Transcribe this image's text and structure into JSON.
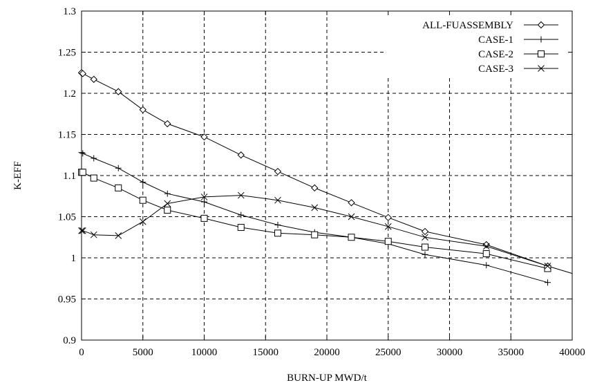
{
  "chart_data": {
    "type": "line",
    "title": "",
    "xlabel": "BURN-UP MWD/t",
    "ylabel": "K-EFF",
    "xlim": [
      0,
      40000
    ],
    "ylim": [
      0.9,
      1.3
    ],
    "x_ticks": [
      0,
      5000,
      10000,
      15000,
      20000,
      25000,
      30000,
      35000,
      40000
    ],
    "x_tick_labels": [
      "0",
      "5000",
      "10000",
      "15000",
      "20000",
      "25000",
      "30000",
      "35000",
      "40000"
    ],
    "y_ticks": [
      0.9,
      0.95,
      1.0,
      1.05,
      1.1,
      1.15,
      1.2,
      1.25,
      1.3
    ],
    "y_tick_labels": [
      "0.9",
      "0.95",
      "1",
      "1.05",
      "1.1",
      "1.15",
      "1.2",
      "1.25",
      "1.3"
    ],
    "grid": true,
    "legend_position": "top-right",
    "series": [
      {
        "name": "ALL-FUASSEMBLY",
        "marker": "diamond",
        "x": [
          0,
          100,
          1000,
          3000,
          5000,
          7000,
          10000,
          13000,
          16000,
          19000,
          22000,
          25000,
          28000,
          33000,
          38000,
          40000
        ],
        "y": [
          1.225,
          1.224,
          1.217,
          1.202,
          1.18,
          1.163,
          1.147,
          1.125,
          1.105,
          1.085,
          1.067,
          1.049,
          1.032,
          1.016,
          0.99,
          0.981
        ]
      },
      {
        "name": "CASE-1",
        "marker": "plus",
        "x": [
          0,
          100,
          1000,
          3000,
          5000,
          7000,
          10000,
          13000,
          16000,
          19000,
          22000,
          25000,
          28000,
          33000,
          38000
        ],
        "y": [
          1.128,
          1.127,
          1.121,
          1.109,
          1.092,
          1.078,
          1.068,
          1.052,
          1.04,
          1.031,
          1.025,
          1.017,
          1.004,
          0.991,
          0.97
        ]
      },
      {
        "name": "CASE-2",
        "marker": "square",
        "x": [
          0,
          100,
          1000,
          3000,
          5000,
          7000,
          10000,
          13000,
          16000,
          19000,
          22000,
          25000,
          28000,
          33000,
          38000
        ],
        "y": [
          1.104,
          1.104,
          1.097,
          1.085,
          1.07,
          1.058,
          1.048,
          1.037,
          1.03,
          1.028,
          1.025,
          1.02,
          1.013,
          1.005,
          0.987
        ]
      },
      {
        "name": "CASE-3",
        "marker": "x",
        "x": [
          0,
          100,
          1000,
          3000,
          5000,
          7000,
          10000,
          13000,
          16000,
          19000,
          22000,
          25000,
          28000,
          33000,
          38000
        ],
        "y": [
          1.033,
          1.033,
          1.028,
          1.027,
          1.044,
          1.066,
          1.074,
          1.076,
          1.07,
          1.061,
          1.05,
          1.038,
          1.025,
          1.014,
          0.99
        ]
      }
    ]
  }
}
